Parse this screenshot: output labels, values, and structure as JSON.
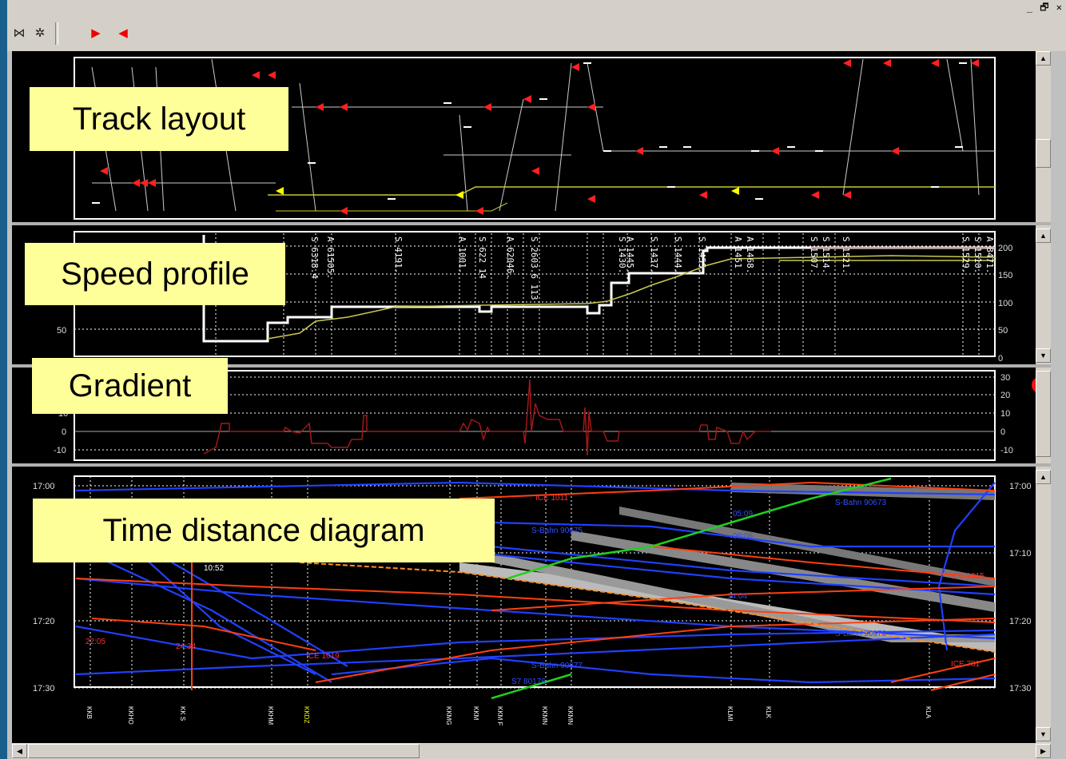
{
  "window": {
    "controls": "_ 🗗 ✕"
  },
  "toolbar": {
    "buttons": [
      {
        "name": "track-tool-icon",
        "glyph": "⋈"
      },
      {
        "name": "network-tool-icon",
        "glyph": "✲"
      },
      {
        "name": "red-train-forward-icon",
        "glyph": "▶"
      },
      {
        "name": "red-train-backward-icon",
        "glyph": "◀"
      }
    ]
  },
  "panels": {
    "track_layout": {
      "label": "Track layout"
    },
    "speed_profile": {
      "label": "Speed profile",
      "right_ticks": [
        "200",
        "150",
        "100",
        "50",
        "0"
      ],
      "left_tick": "50",
      "signal_labels": [
        "A 61505.",
        "S 6318.4",
        "S 4191.",
        "A 1001.",
        "S 622 14",
        "A 62046.",
        "S 2603.6 113",
        "S 1430.",
        "A 1445.",
        "S 1437.",
        "S 1444.",
        "S 1455.",
        "A 1451",
        "A 1468.",
        "S 1507.",
        "S 1514.",
        "S 1521.",
        "S 1529.",
        "S 1510.",
        "A 8471."
      ]
    },
    "gradient": {
      "label": "Gradient",
      "right_ticks": [
        "30",
        "20",
        "10",
        "0",
        "-10"
      ],
      "left_ticks": [
        "10",
        "0",
        "-10"
      ]
    },
    "time_distance": {
      "label": "Time distance diagram",
      "left_times": [
        "17:00",
        "17:20",
        "17:30"
      ],
      "right_times": [
        "17:00",
        "17:10",
        "17:20",
        "17:30"
      ],
      "stations": [
        "KKB",
        "KKHO",
        "KK S",
        "KKHM",
        "KKDZ",
        "KKMG",
        "KKM",
        "KKM F",
        "KKMN",
        "KKMN",
        "KLMI",
        "KLK",
        "KLA"
      ],
      "train_labels": [
        {
          "text": "ICE 1011",
          "color": "#ff3030"
        },
        {
          "text": "S-Bahn 90675",
          "color": "#3050ff"
        },
        {
          "text": "S-Bahn 90673",
          "color": "#3050ff"
        },
        {
          "text": "S-Bahn 90676",
          "color": "#3050ff"
        },
        {
          "text": "S-Bahn 90677",
          "color": "#3050ff"
        },
        {
          "text": "ICE 1019",
          "color": "#ff3030"
        },
        {
          "text": "ICE 1015",
          "color": "#ff3030"
        },
        {
          "text": "ICE 781",
          "color": "#ff3030"
        },
        {
          "text": "S7 80176",
          "color": "#3050ff"
        },
        {
          "text": "10:52",
          "color": "#ffffff"
        },
        {
          "text": "05:09",
          "color": "#3050ff"
        },
        {
          "text": "06:06",
          "color": "#3050ff"
        },
        {
          "text": "14:04",
          "color": "#3050ff"
        },
        {
          "text": "22:05",
          "color": "#ff3030"
        },
        {
          "text": "24:34",
          "color": "#ff3030"
        }
      ]
    }
  },
  "colors": {
    "background": "#000000",
    "panel_border": "#ffffff",
    "signal_red": "#ff2020",
    "track_yellow": "#d8d840",
    "label_bg": "#ffff99",
    "sbahn_blue": "#2040ff",
    "ice_red": "#ff3010",
    "green_train": "#20d020"
  }
}
